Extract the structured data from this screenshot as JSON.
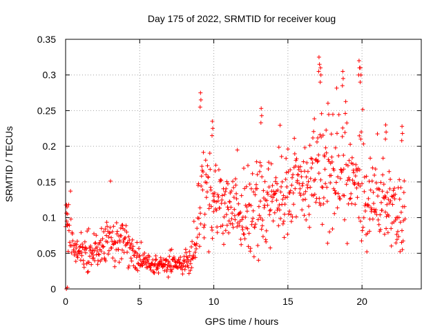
{
  "chart_data": {
    "type": "scatter",
    "title": "Day 175 of 2022, SRMTID for receiver koug",
    "xlabel": "GPS time / hours",
    "ylabel": "SRMTID / TECUs",
    "xlim": [
      0,
      24
    ],
    "ylim": [
      0,
      0.35
    ],
    "xticks": [
      "0",
      "5",
      "10",
      "15",
      "20"
    ],
    "yticks": [
      "0",
      "0.05",
      "0.1",
      "0.15",
      "0.2",
      "0.25",
      "0.3",
      "0.35"
    ],
    "grid": true,
    "marker": "+",
    "color": "#ff0000",
    "profile": {
      "hours": [
        0,
        0.2,
        0.5,
        1.0,
        1.5,
        2.0,
        2.5,
        3.0,
        3.5,
        4.0,
        4.5,
        5.0,
        5.5,
        6.0,
        6.5,
        7.0,
        7.5,
        8.0,
        8.5,
        8.8,
        9.0,
        9.5,
        10.0,
        10.5,
        11.0,
        11.5,
        12.0,
        12.5,
        13.0,
        13.5,
        14.0,
        14.5,
        15.0,
        15.5,
        16.0,
        16.5,
        17.0,
        17.5,
        18.0,
        18.5,
        19.0,
        19.5,
        20.0,
        20.5,
        21.0,
        21.5,
        22.0,
        22.5,
        22.9
      ],
      "median": [
        0.09,
        0.085,
        0.06,
        0.05,
        0.05,
        0.055,
        0.06,
        0.065,
        0.065,
        0.07,
        0.05,
        0.04,
        0.035,
        0.033,
        0.033,
        0.035,
        0.036,
        0.038,
        0.045,
        0.07,
        0.13,
        0.14,
        0.11,
        0.12,
        0.11,
        0.11,
        0.1,
        0.11,
        0.12,
        0.115,
        0.12,
        0.12,
        0.13,
        0.14,
        0.15,
        0.15,
        0.16,
        0.17,
        0.17,
        0.17,
        0.16,
        0.15,
        0.14,
        0.12,
        0.12,
        0.12,
        0.1,
        0.1,
        0.11
      ],
      "spread": [
        0.02,
        0.02,
        0.015,
        0.013,
        0.013,
        0.015,
        0.02,
        0.022,
        0.02,
        0.02,
        0.013,
        0.01,
        0.008,
        0.007,
        0.007,
        0.008,
        0.008,
        0.008,
        0.01,
        0.02,
        0.04,
        0.04,
        0.03,
        0.03,
        0.025,
        0.025,
        0.025,
        0.03,
        0.035,
        0.035,
        0.03,
        0.03,
        0.035,
        0.035,
        0.035,
        0.04,
        0.045,
        0.045,
        0.045,
        0.045,
        0.045,
        0.04,
        0.04,
        0.035,
        0.035,
        0.035,
        0.03,
        0.03,
        0.03
      ]
    },
    "peaks": [
      {
        "hour": 0.1,
        "value": 0.115
      },
      {
        "hour": 9.1,
        "value": 0.275
      },
      {
        "hour": 9.9,
        "value": 0.235
      },
      {
        "hour": 13.2,
        "value": 0.253
      },
      {
        "hour": 17.1,
        "value": 0.325
      },
      {
        "hour": 17.2,
        "value": 0.31
      },
      {
        "hour": 18.7,
        "value": 0.305
      },
      {
        "hour": 19.8,
        "value": 0.32
      },
      {
        "hour": 19.9,
        "value": 0.31
      },
      {
        "hour": 21.6,
        "value": 0.23
      },
      {
        "hour": 22.7,
        "value": 0.228
      }
    ],
    "point_count": 900
  }
}
